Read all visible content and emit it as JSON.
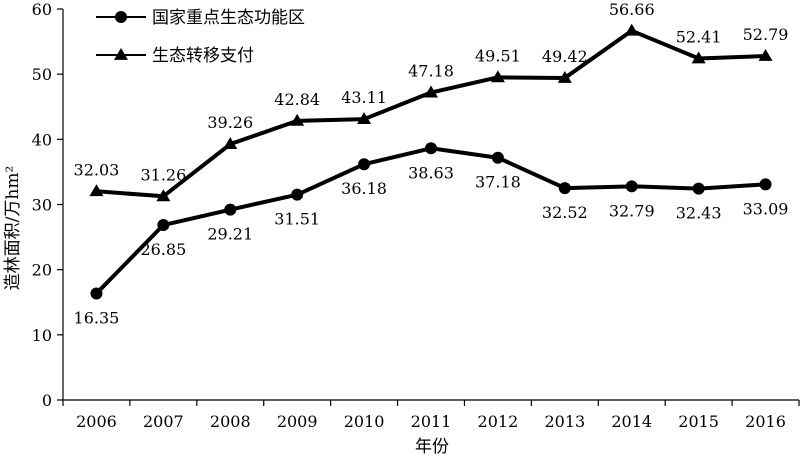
{
  "chart_data": {
    "type": "line",
    "title": "",
    "xlabel": "年份",
    "ylabel": "造林面积/万hm²",
    "ylim": [
      0,
      60
    ],
    "yticks": [
      0,
      10,
      20,
      30,
      40,
      50,
      60
    ],
    "grid": false,
    "legend_position": "top-left",
    "categories": [
      "2006",
      "2007",
      "2008",
      "2009",
      "2010",
      "2011",
      "2012",
      "2013",
      "2014",
      "2015",
      "2016"
    ],
    "series": [
      {
        "name": "国家重点生态功能区",
        "marker": "circle",
        "color": "#000000",
        "label_position": "below",
        "values": [
          16.35,
          26.85,
          29.21,
          31.51,
          36.18,
          38.63,
          37.18,
          32.52,
          32.79,
          32.43,
          33.09
        ],
        "labels": [
          "16.35",
          "26.85",
          "29.21",
          "31.51",
          "36.18",
          "38.63",
          "37.18",
          "32.52",
          "32.79",
          "32.43",
          "33.09"
        ]
      },
      {
        "name": "生态转移支付",
        "marker": "triangle",
        "color": "#000000",
        "label_position": "above",
        "values": [
          32.03,
          31.26,
          39.26,
          42.84,
          43.11,
          47.18,
          49.51,
          49.42,
          56.66,
          52.41,
          52.79
        ],
        "labels": [
          "32.03",
          "31.26",
          "39.26",
          "42.84",
          "43.11",
          "47.18",
          "49.51",
          "49.42",
          "56.66",
          "52.41",
          "52.79"
        ]
      }
    ]
  }
}
